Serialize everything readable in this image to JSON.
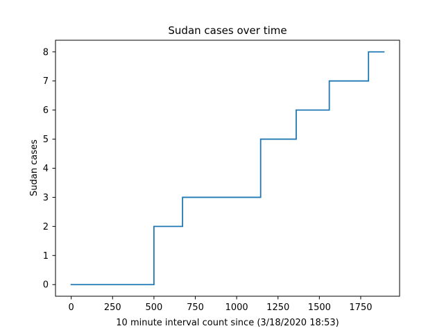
{
  "chart_data": {
    "type": "line",
    "title": "Sudan cases over time",
    "xlabel": "10 minute interval count since (3/18/2020 18:53)",
    "ylabel": "Sudan cases",
    "xlim": [
      -95,
      1985
    ],
    "ylim": [
      -0.4,
      8.4
    ],
    "x_ticks": [
      0,
      250,
      500,
      750,
      1000,
      1250,
      1500,
      1750
    ],
    "y_ticks": [
      0,
      1,
      2,
      3,
      4,
      5,
      6,
      7,
      8
    ],
    "grid": false,
    "step": true,
    "series": [
      {
        "color": "#1f77b4",
        "points": [
          [
            0,
            0
          ],
          [
            500,
            0
          ],
          [
            500,
            2
          ],
          [
            673,
            2
          ],
          [
            673,
            3
          ],
          [
            1145,
            3
          ],
          [
            1145,
            5
          ],
          [
            1360,
            5
          ],
          [
            1360,
            6
          ],
          [
            1560,
            6
          ],
          [
            1560,
            7
          ],
          [
            1797,
            7
          ],
          [
            1797,
            8
          ],
          [
            1890,
            8
          ]
        ]
      }
    ]
  }
}
